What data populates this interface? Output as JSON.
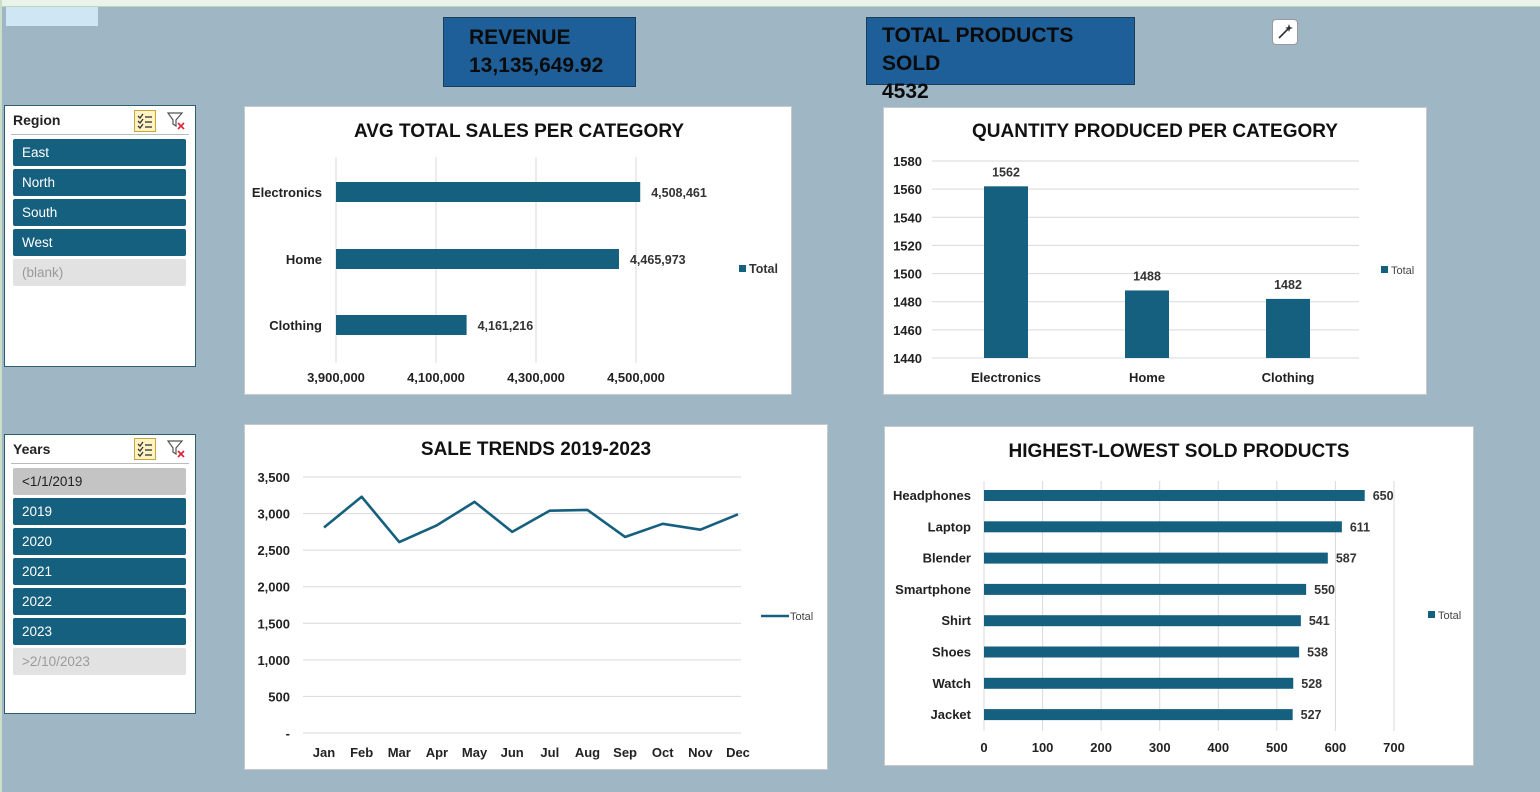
{
  "kpis": {
    "revenue_label": "REVENUE",
    "revenue_value": "13,135,649.92",
    "products_label": "TOTAL PRODUCTS SOLD",
    "products_value": "4532"
  },
  "slicers": {
    "region": {
      "title": "Region",
      "items": [
        {
          "label": "East",
          "state": "on"
        },
        {
          "label": "North",
          "state": "on"
        },
        {
          "label": "South",
          "state": "on"
        },
        {
          "label": "West",
          "state": "on"
        },
        {
          "label": "(blank)",
          "state": "off"
        }
      ]
    },
    "years": {
      "title": "Years",
      "items": [
        {
          "label": "<1/1/2019",
          "state": "mid"
        },
        {
          "label": "2019",
          "state": "on"
        },
        {
          "label": "2020",
          "state": "on"
        },
        {
          "label": "2021",
          "state": "on"
        },
        {
          "label": "2022",
          "state": "on"
        },
        {
          "label": "2023",
          "state": "on"
        },
        {
          "label": ">2/10/2023",
          "state": "off"
        }
      ]
    }
  },
  "colors": {
    "bar": "#16607f",
    "grid": "#d9d9d9",
    "kpi": "#1f5f99"
  },
  "chart_data": [
    {
      "id": "avg-sales",
      "type": "bar",
      "orientation": "horizontal",
      "title": "AVG TOTAL SALES PER CATEGORY",
      "categories": [
        "Electronics",
        "Home",
        "Clothing"
      ],
      "series": [
        {
          "name": "Total",
          "values": [
            4508461,
            4465973,
            4161216
          ]
        }
      ],
      "data_labels": [
        "4,508,461",
        "4,465,973",
        "4,161,216"
      ],
      "xlim": [
        3900000,
        4500000
      ],
      "x_ticks": [
        "3,900,000",
        "4,100,000",
        "4,300,000",
        "4,500,000"
      ],
      "grid": true,
      "legend": "right"
    },
    {
      "id": "qty-produced",
      "type": "bar",
      "orientation": "vertical",
      "title": "QUANTITY PRODUCED PER CATEGORY",
      "categories": [
        "Electronics",
        "Home",
        "Clothing"
      ],
      "series": [
        {
          "name": "Total",
          "values": [
            1562,
            1488,
            1482
          ]
        }
      ],
      "ylim": [
        1440,
        1580
      ],
      "y_ticks": [
        "1440",
        "1460",
        "1480",
        "1500",
        "1520",
        "1540",
        "1560",
        "1580"
      ],
      "grid": true,
      "legend": "right"
    },
    {
      "id": "sale-trends",
      "type": "line",
      "title": "SALE TRENDS 2019-2023",
      "categories": [
        "Jan",
        "Feb",
        "Mar",
        "Apr",
        "May",
        "Jun",
        "Jul",
        "Aug",
        "Sep",
        "Oct",
        "Nov",
        "Dec"
      ],
      "series": [
        {
          "name": "Total",
          "values": [
            2810,
            3230,
            2610,
            2840,
            3160,
            2750,
            3040,
            3050,
            2680,
            2860,
            2780,
            2990
          ]
        }
      ],
      "ylim": [
        0,
        3500
      ],
      "y_ticks": [
        "-",
        "500",
        "1,000",
        "1,500",
        "2,000",
        "2,500",
        "3,000",
        "3,500"
      ],
      "grid": true,
      "legend": "right"
    },
    {
      "id": "sold-products",
      "type": "bar",
      "orientation": "horizontal",
      "title": "HIGHEST-LOWEST SOLD PRODUCTS",
      "categories": [
        "Headphones",
        "Laptop",
        "Blender",
        "Smartphone",
        "Shirt",
        "Shoes",
        "Watch",
        "Jacket"
      ],
      "series": [
        {
          "name": "Total",
          "values": [
            650,
            611,
            587,
            550,
            541,
            538,
            528,
            527
          ]
        }
      ],
      "xlim": [
        0,
        700
      ],
      "x_ticks": [
        "0",
        "100",
        "200",
        "300",
        "400",
        "500",
        "600",
        "700"
      ],
      "grid": true,
      "legend": "right"
    }
  ]
}
